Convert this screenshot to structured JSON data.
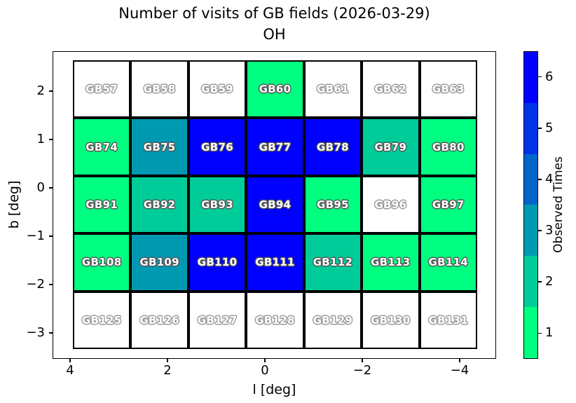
{
  "chart_data": {
    "type": "heatmap",
    "title": "Number of visits of GB fields (2026-03-29)",
    "subtitle": "OH",
    "xlabel": "l [deg]",
    "ylabel": "b [deg]",
    "x_tick_labels": [
      "4",
      "2",
      "0",
      "−2",
      "−4"
    ],
    "y_tick_labels": [
      "2",
      "1",
      "0",
      "−1",
      "−2",
      "−3"
    ],
    "x_axis_reversed": true,
    "grid_on": false,
    "rows": [
      {
        "labels": [
          "GB57",
          "GB58",
          "GB59",
          "GB60",
          "GB61",
          "GB62",
          "GB63"
        ],
        "values": [
          0,
          0,
          0,
          1,
          0,
          0,
          0
        ]
      },
      {
        "labels": [
          "GB74",
          "GB75",
          "GB76",
          "GB77",
          "GB78",
          "GB79",
          "GB80"
        ],
        "values": [
          1,
          3,
          6,
          6,
          6,
          2,
          1
        ]
      },
      {
        "labels": [
          "GB91",
          "GB92",
          "GB93",
          "GB94",
          "GB95",
          "GB96",
          "GB97"
        ],
        "values": [
          1,
          2,
          2,
          6,
          1,
          0,
          1
        ]
      },
      {
        "labels": [
          "GB108",
          "GB109",
          "GB110",
          "GB111",
          "GB112",
          "GB113",
          "GB114"
        ],
        "values": [
          1,
          3,
          6,
          6,
          2,
          1,
          1
        ]
      },
      {
        "labels": [
          "GB125",
          "GB126",
          "GB127",
          "GB128",
          "GB129",
          "GB130",
          "GB131"
        ],
        "values": [
          0,
          0,
          0,
          0,
          0,
          0,
          0
        ]
      }
    ],
    "value_colors": {
      "0": "#ffffff",
      "1": "#00ff80",
      "2": "#00cc99",
      "3": "#0099b2",
      "4": "#0066cc",
      "5": "#0033e6",
      "6": "#0000ff"
    },
    "colorbar": {
      "label": "Observed Times",
      "ticks_top_to_bottom": [
        "6",
        "5",
        "4",
        "3",
        "2",
        "1"
      ],
      "bands_top_to_bottom": [
        "#0000ff",
        "#0033e6",
        "#0066cc",
        "#0099b2",
        "#00cc99",
        "#00ff80"
      ],
      "range": [
        1,
        6
      ]
    }
  }
}
